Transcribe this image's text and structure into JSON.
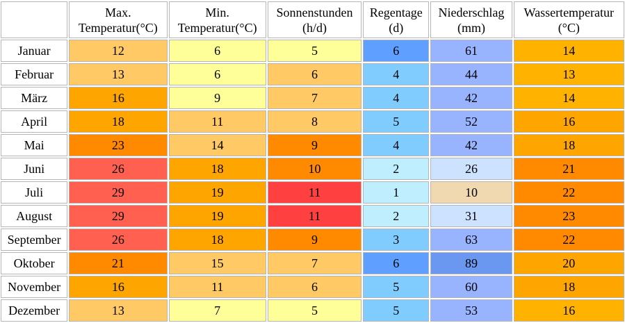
{
  "headers": [
    [
      "Max.",
      "Temperatur(°C)"
    ],
    [
      "Min.",
      "Temperatur(°C)"
    ],
    [
      "Sonnenstunden",
      "(h/d)"
    ],
    [
      "Regentage",
      "(d)"
    ],
    [
      "Niederschlag",
      "(mm)"
    ],
    [
      "Wassertemperatur",
      "(°C)"
    ]
  ],
  "rows": [
    {
      "month": "Januar",
      "values": [
        "12",
        "6",
        "5",
        "6",
        "61",
        "14"
      ],
      "colors": [
        "#ffc966",
        "#ffff99",
        "#ffff99",
        "#5f9fff",
        "#99b4ff",
        "#ffb300"
      ]
    },
    {
      "month": "Februar",
      "values": [
        "13",
        "6",
        "6",
        "4",
        "44",
        "13"
      ],
      "colors": [
        "#ffc966",
        "#ffff99",
        "#ffc966",
        "#80ccff",
        "#99b4ff",
        "#ffb300"
      ]
    },
    {
      "month": "März",
      "values": [
        "16",
        "9",
        "7",
        "4",
        "42",
        "14"
      ],
      "colors": [
        "#ffa500",
        "#ffff99",
        "#ffc966",
        "#80ccff",
        "#99b4ff",
        "#ffb300"
      ]
    },
    {
      "month": "April",
      "values": [
        "18",
        "11",
        "8",
        "5",
        "52",
        "16"
      ],
      "colors": [
        "#ffa500",
        "#ffc966",
        "#ffc966",
        "#80ccff",
        "#99b4ff",
        "#ffa500"
      ]
    },
    {
      "month": "Mai",
      "values": [
        "23",
        "14",
        "9",
        "4",
        "42",
        "18"
      ],
      "colors": [
        "#ff8a00",
        "#ffc966",
        "#ff8a00",
        "#80ccff",
        "#99b4ff",
        "#ffa500"
      ]
    },
    {
      "month": "Juni",
      "values": [
        "26",
        "18",
        "10",
        "2",
        "26",
        "21"
      ],
      "colors": [
        "#ff6050",
        "#ffa500",
        "#ff8a00",
        "#bfeeff",
        "#cce2ff",
        "#ff8a00"
      ]
    },
    {
      "month": "Juli",
      "values": [
        "29",
        "19",
        "11",
        "1",
        "10",
        "22"
      ],
      "colors": [
        "#ff6050",
        "#ffa500",
        "#ff4040",
        "#bfeeff",
        "#f0d9b0",
        "#ff8a00"
      ]
    },
    {
      "month": "August",
      "values": [
        "29",
        "19",
        "11",
        "2",
        "31",
        "23"
      ],
      "colors": [
        "#ff6050",
        "#ffa500",
        "#ff4040",
        "#bfeeff",
        "#cce2ff",
        "#ff8a00"
      ]
    },
    {
      "month": "September",
      "values": [
        "26",
        "18",
        "9",
        "3",
        "63",
        "22"
      ],
      "colors": [
        "#ff6050",
        "#ffa500",
        "#ff8a00",
        "#80ccff",
        "#99b4ff",
        "#ff8a00"
      ]
    },
    {
      "month": "Oktober",
      "values": [
        "21",
        "15",
        "7",
        "6",
        "89",
        "20"
      ],
      "colors": [
        "#ff8a00",
        "#ffc966",
        "#ffc966",
        "#5f9fff",
        "#6a98f0",
        "#ffa500"
      ]
    },
    {
      "month": "November",
      "values": [
        "16",
        "11",
        "6",
        "5",
        "60",
        "18"
      ],
      "colors": [
        "#ffa500",
        "#ffc966",
        "#ffc966",
        "#80ccff",
        "#99b4ff",
        "#ffa500"
      ]
    },
    {
      "month": "Dezember",
      "values": [
        "13",
        "7",
        "5",
        "5",
        "53",
        "16"
      ],
      "colors": [
        "#ffc966",
        "#ffff99",
        "#ffff99",
        "#80ccff",
        "#99b4ff",
        "#ffb300"
      ]
    }
  ]
}
